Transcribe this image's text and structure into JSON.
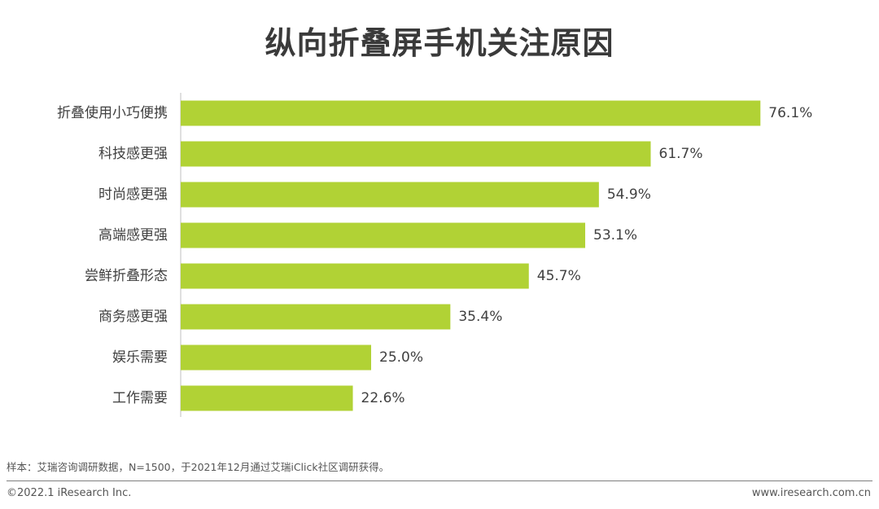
{
  "chart_data": {
    "type": "bar",
    "orientation": "horizontal",
    "title": "纵向折叠屏手机关注原因",
    "categories": [
      "折叠使用小巧便携",
      "科技感更强",
      "时尚感更强",
      "高端感更强",
      "尝鲜折叠形态",
      "商务感更强",
      "娱乐需要",
      "工作需要"
    ],
    "values": [
      76.1,
      61.7,
      54.9,
      53.1,
      45.7,
      35.4,
      25.0,
      22.6
    ],
    "value_labels": [
      "76.1%",
      "61.7%",
      "54.9%",
      "53.1%",
      "45.7%",
      "35.4%",
      "25.0%",
      "22.6%"
    ],
    "unit": "%",
    "xlim": [
      0,
      100
    ],
    "bar_color": "#b1d235",
    "grid": false,
    "legend": "none"
  },
  "footnote": "样本：艾瑞咨询调研数据，N=1500，于2021年12月通过艾瑞iClick社区调研获得。",
  "copyright": "©2022.1 iResearch Inc.",
  "website": "www.iresearch.com.cn"
}
